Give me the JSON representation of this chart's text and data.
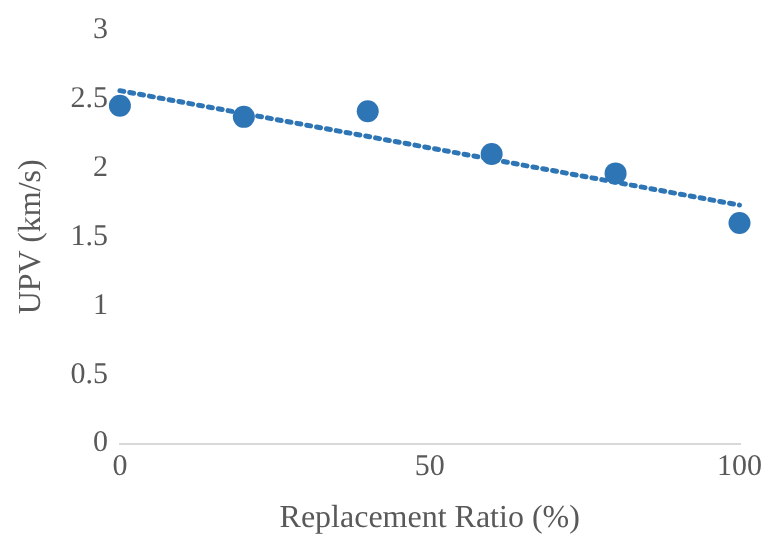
{
  "chart_data": {
    "type": "scatter",
    "xlabel": "Replacement Ratio (%)",
    "ylabel": "UPV (km/s)",
    "x": [
      0,
      20,
      40,
      60,
      80,
      100
    ],
    "series": [
      {
        "type": "scatter",
        "color": "#2e75b6",
        "marker": "circle",
        "values": [
          2.45,
          2.37,
          2.41,
          2.1,
          1.96,
          1.6
        ]
      },
      {
        "type": "line",
        "color": "#2e75b6",
        "marker": "none",
        "line_style": "dotted",
        "x": [
          0,
          100
        ],
        "values": [
          2.56,
          1.73
        ]
      }
    ],
    "xlim": [
      0,
      100
    ],
    "xticks": [
      0,
      50,
      100
    ],
    "ylim": [
      0,
      3
    ],
    "yticks": [
      0,
      0.5,
      1,
      1.5,
      2,
      2.5,
      3
    ],
    "grid": false,
    "legend": false
  }
}
